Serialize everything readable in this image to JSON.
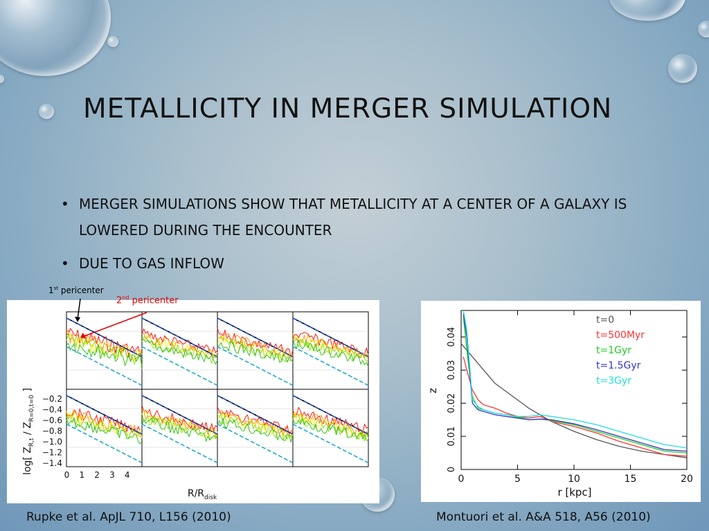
{
  "slide": {
    "title": "Metallicity in merger simulation",
    "bullets": [
      "Merger simulations show that metallicity at a center of a galaxy is lowered during the encounter",
      "Due to gas inflow"
    ]
  },
  "annotations": {
    "first_pericenter": {
      "num": "1",
      "sup": "st",
      "text": " pericenter",
      "color": "#000000"
    },
    "second_pericenter": {
      "num": "2",
      "sup": "nd",
      "text": " pericenter",
      "color": "#e00000"
    }
  },
  "captions": {
    "left": "Rupke et al. ApJL 710, L156 (2010)",
    "right": "Montuori et al. A&A 518, A56 (2010)"
  },
  "chart_data": [
    {
      "type": "line",
      "panels": "4x2 grid",
      "ylabel_main": "log[ Z",
      "ylabel_sub1": "R,t",
      "ylabel_mid": " / Z",
      "ylabel_sub2": "R=0,t=0",
      "ylabel_end": " ]",
      "xlabel_main": "R/R",
      "xlabel_sub": "disk",
      "xticks": [
        "0",
        "1",
        "2",
        "3",
        "4"
      ],
      "yticks": [
        "−0.2",
        "−0.4",
        "−0.6",
        "−0.8",
        "−1.0",
        "−1.2",
        "−1.4"
      ],
      "xlim": [
        0,
        5
      ],
      "ylim": [
        -1.5,
        0
      ],
      "series_colors": [
        "#000000",
        "#ff0000",
        "#ff8800",
        "#ffee00",
        "#88dd00",
        "#22bb00",
        "#2255cc",
        "#22aacc"
      ]
    },
    {
      "type": "line",
      "xlabel": "r  [kpc]",
      "ylabel": "z",
      "xticks": [
        "0",
        "5",
        "10",
        "15",
        "20"
      ],
      "yticks": [
        "0",
        "0.01",
        "0.02",
        "0.03",
        "0.04"
      ],
      "xlim": [
        0,
        20
      ],
      "ylim": [
        0,
        0.048
      ],
      "series": [
        {
          "name": "t=0",
          "color": "#555555",
          "x": [
            0,
            1,
            2,
            3,
            4,
            5,
            6,
            8,
            10,
            12,
            14,
            16,
            18,
            20
          ],
          "y": [
            0.038,
            0.034,
            0.03,
            0.026,
            0.0235,
            0.021,
            0.0185,
            0.0145,
            0.0115,
            0.009,
            0.007,
            0.0055,
            0.0045,
            0.0035
          ]
        },
        {
          "name": "t=500Myr",
          "color": "#ff3333",
          "x": [
            0.2,
            0.5,
            1,
            1.5,
            2,
            3,
            4,
            5,
            6,
            7,
            8,
            10,
            12,
            14,
            16,
            18,
            20
          ],
          "y": [
            0.034,
            0.03,
            0.024,
            0.021,
            0.0195,
            0.0185,
            0.017,
            0.016,
            0.0155,
            0.016,
            0.0145,
            0.013,
            0.011,
            0.0085,
            0.0065,
            0.0045,
            0.004
          ]
        },
        {
          "name": "t=1Gyr",
          "color": "#22cc22",
          "x": [
            0.2,
            0.5,
            1,
            1.5,
            2,
            3,
            4,
            5,
            6,
            7,
            8,
            10,
            12,
            14,
            16,
            18,
            20
          ],
          "y": [
            0.046,
            0.036,
            0.022,
            0.0185,
            0.018,
            0.017,
            0.0165,
            0.0158,
            0.015,
            0.0152,
            0.0148,
            0.0135,
            0.0115,
            0.0095,
            0.0075,
            0.0055,
            0.005
          ]
        },
        {
          "name": "t=1.5Gyr",
          "color": "#3333cc",
          "x": [
            0.2,
            0.5,
            1,
            1.5,
            2,
            3,
            4,
            5,
            6,
            7,
            8,
            10,
            12,
            14,
            16,
            18,
            20
          ],
          "y": [
            0.047,
            0.04,
            0.02,
            0.018,
            0.0175,
            0.0165,
            0.016,
            0.0155,
            0.015,
            0.0152,
            0.015,
            0.0138,
            0.012,
            0.01,
            0.008,
            0.006,
            0.0055
          ]
        },
        {
          "name": "t=3Gyr",
          "color": "#22dddd",
          "x": [
            0.2,
            0.5,
            1,
            1.5,
            2,
            3,
            4,
            5,
            6,
            7,
            8,
            10,
            12,
            14,
            16,
            18,
            20
          ],
          "y": [
            0.048,
            0.042,
            0.021,
            0.019,
            0.018,
            0.017,
            0.0165,
            0.016,
            0.016,
            0.0165,
            0.016,
            0.015,
            0.0135,
            0.0115,
            0.0095,
            0.0075,
            0.0065
          ]
        }
      ]
    }
  ]
}
